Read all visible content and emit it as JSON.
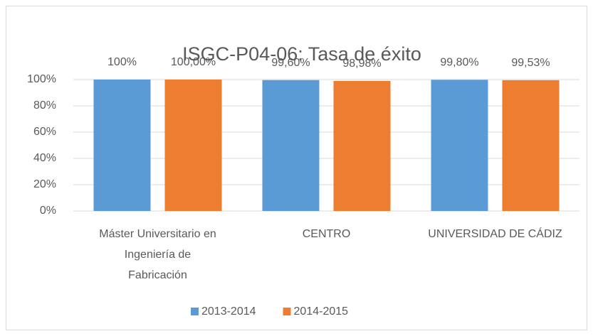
{
  "chart_data": {
    "type": "bar",
    "title": "ISGC-P04-06: Tasa de éxito",
    "categories": [
      "Máster Universitario en\nIngeniería de\nFabricación",
      "CENTRO",
      "UNIVERSIDAD DE CÁDIZ"
    ],
    "series": [
      {
        "name": "2013-2014",
        "color": "#5b9bd5",
        "values": [
          100,
          99.6,
          99.8
        ],
        "value_labels": [
          "100%",
          "99,60%",
          "99,80%"
        ]
      },
      {
        "name": "2014-2015",
        "color": "#ed7d31",
        "values": [
          100,
          98.98,
          99.53
        ],
        "value_labels": [
          "100,00%",
          "98,98%",
          "99,53%"
        ]
      }
    ],
    "ylim": [
      0,
      100
    ],
    "yticks": [
      {
        "value": 0,
        "label": "0%"
      },
      {
        "value": 20,
        "label": "20%"
      },
      {
        "value": 40,
        "label": "40%"
      },
      {
        "value": 60,
        "label": "60%"
      },
      {
        "value": 80,
        "label": "80%"
      },
      {
        "value": 100,
        "label": "100%"
      }
    ],
    "grid": true,
    "legend": "bottom"
  }
}
